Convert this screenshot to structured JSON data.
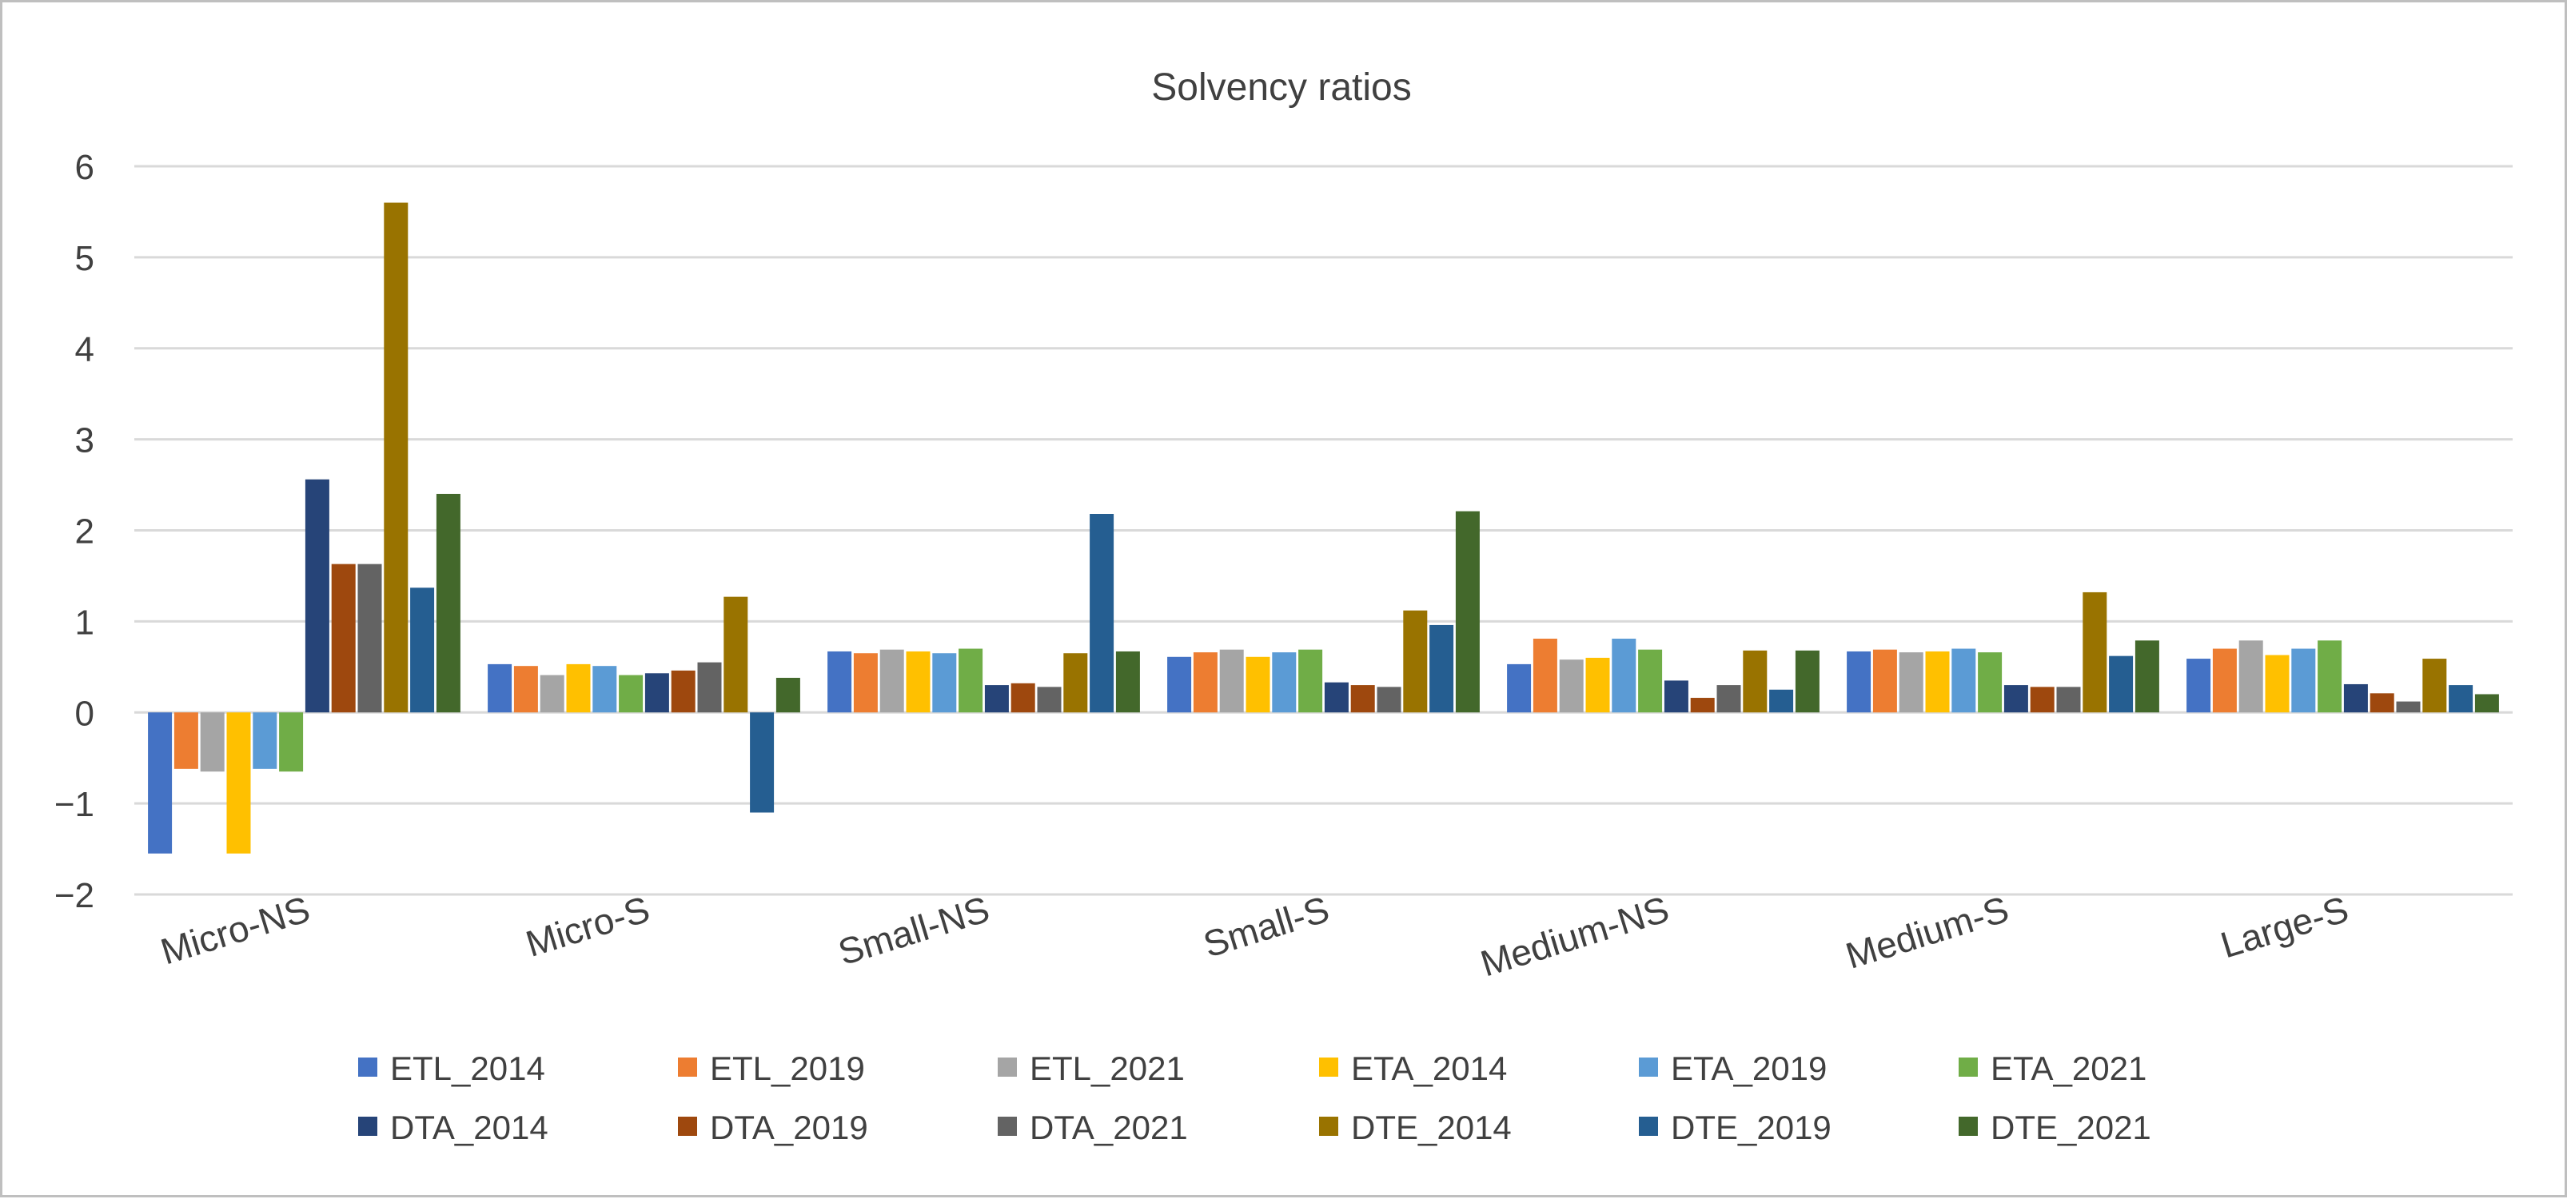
{
  "chart_data": {
    "type": "bar",
    "title": "Solvency ratios",
    "xlabel": "",
    "ylabel": "",
    "ylim": [
      -2,
      6
    ],
    "yticks": [
      "−2",
      "−1",
      "0",
      "1",
      "2",
      "3",
      "4",
      "5",
      "6"
    ],
    "ytick_values": [
      -2,
      -1,
      0,
      1,
      2,
      3,
      4,
      5,
      6
    ],
    "grid": true,
    "legend_position": "bottom",
    "categories": [
      "Micro-NS",
      "Micro-S",
      "Small-NS",
      "Small-S",
      "Medium-NS",
      "Medium-S",
      "Large-S"
    ],
    "series": [
      {
        "name": "ETL_2014",
        "color": "#4472C4",
        "values": [
          -1.55,
          0.53,
          0.67,
          0.61,
          0.53,
          0.67,
          0.59
        ]
      },
      {
        "name": "ETL_2019",
        "color": "#ED7D31",
        "values": [
          -0.62,
          0.51,
          0.65,
          0.66,
          0.81,
          0.69,
          0.7
        ]
      },
      {
        "name": "ETL_2021",
        "color": "#A5A5A5",
        "values": [
          -0.65,
          0.41,
          0.69,
          0.69,
          0.58,
          0.66,
          0.79
        ]
      },
      {
        "name": "ETA_2014",
        "color": "#FFC000",
        "values": [
          -1.55,
          0.53,
          0.67,
          0.61,
          0.6,
          0.67,
          0.63
        ]
      },
      {
        "name": "ETA_2019",
        "color": "#5B9BD5",
        "values": [
          -0.62,
          0.51,
          0.65,
          0.66,
          0.81,
          0.7,
          0.7
        ]
      },
      {
        "name": "ETA_2021",
        "color": "#70AD47",
        "values": [
          -0.65,
          0.41,
          0.7,
          0.69,
          0.69,
          0.66,
          0.79
        ]
      },
      {
        "name": "DTA_2014",
        "color": "#264478",
        "values": [
          2.56,
          0.43,
          0.3,
          0.33,
          0.35,
          0.3,
          0.31
        ]
      },
      {
        "name": "DTA_2019",
        "color": "#9E480E",
        "values": [
          1.63,
          0.46,
          0.32,
          0.3,
          0.16,
          0.28,
          0.21
        ]
      },
      {
        "name": "DTA_2021",
        "color": "#636363",
        "values": [
          1.63,
          0.55,
          0.28,
          0.28,
          0.3,
          0.28,
          0.12
        ]
      },
      {
        "name": "DTE_2014",
        "color": "#997300",
        "values": [
          5.6,
          1.27,
          0.65,
          1.12,
          0.68,
          1.32,
          0.59
        ]
      },
      {
        "name": "DTE_2019",
        "color": "#255E91",
        "values": [
          1.37,
          -1.1,
          2.18,
          0.96,
          0.25,
          0.62,
          0.3
        ]
      },
      {
        "name": "DTE_2021",
        "color": "#43682B",
        "values": [
          2.4,
          0.38,
          0.67,
          2.21,
          0.68,
          0.79,
          0.2
        ]
      }
    ]
  }
}
